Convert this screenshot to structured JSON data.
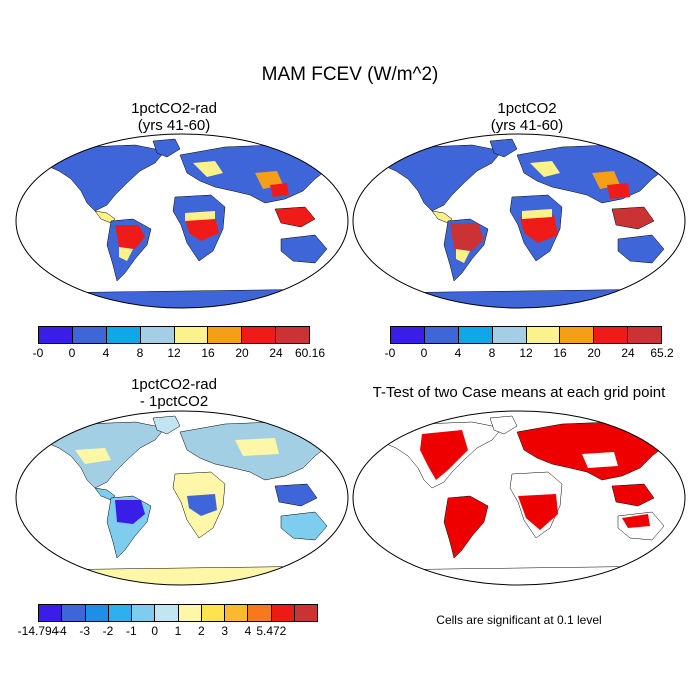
{
  "title": "MAM FCEV (W/m^2)",
  "panels": [
    {
      "id": "p1",
      "title_line1": "1pctCO2-rad",
      "title_line2": "(yrs 41-60)",
      "colorbar": {
        "colors": [
          "#3a1ee8",
          "#3e66d8",
          "#0fa7ea",
          "#a2cfe3",
          "#fdf289",
          "#f59f16",
          "#ef1b18",
          "#ca3233"
        ],
        "labels": [
          "-0",
          "0",
          "4",
          "8",
          "12",
          "16",
          "20",
          "24",
          "60.16"
        ]
      }
    },
    {
      "id": "p2",
      "title_line1": "1pctCO2",
      "title_line2": "(yrs 41-60)",
      "colorbar": {
        "colors": [
          "#3a1ee8",
          "#3e66d8",
          "#0fa7ea",
          "#a2cfe3",
          "#fdf289",
          "#f59f16",
          "#ef1b18",
          "#ca3233"
        ],
        "labels": [
          "-0",
          "0",
          "4",
          "8",
          "12",
          "16",
          "20",
          "24",
          "65.2"
        ]
      }
    },
    {
      "id": "p3",
      "title_line1": "1pctCO2-rad",
      "title_line2": "- 1pctCO2",
      "colorbar": {
        "colors": [
          "#3a1ee8",
          "#3e66d8",
          "#1f8ee6",
          "#2eb0ee",
          "#7ecdef",
          "#c2e6f1",
          "#fef7a7",
          "#fde44e",
          "#fbb92e",
          "#f7791c",
          "#ec1b13",
          "#cb3233"
        ],
        "labels": [
          "-14.794",
          "-4",
          "-3",
          "-2",
          "-1",
          "0",
          "1",
          "2",
          "3",
          "4",
          "5.472"
        ]
      }
    },
    {
      "id": "p4",
      "title": "T-Test of two Case means at each grid point",
      "note": "Cells are significant at 0.1 level"
    }
  ]
}
